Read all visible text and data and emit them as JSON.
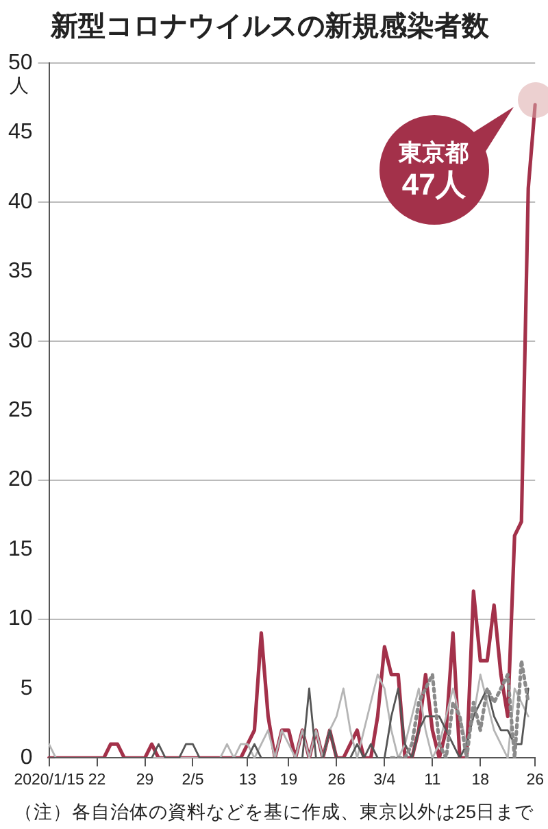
{
  "chart_data": {
    "type": "line",
    "title": "新型コロナウイルスの新規感染者数",
    "ylabel": "人",
    "categories": [
      "2020/1/15",
      null,
      null,
      null,
      null,
      null,
      null,
      "22",
      null,
      null,
      null,
      null,
      null,
      null,
      "29",
      null,
      null,
      null,
      null,
      null,
      null,
      "2/5",
      null,
      null,
      null,
      null,
      null,
      null,
      null,
      "13",
      null,
      null,
      null,
      null,
      null,
      "19",
      null,
      null,
      null,
      null,
      null,
      null,
      "26",
      null,
      null,
      null,
      null,
      null,
      null,
      "3/4",
      null,
      null,
      null,
      null,
      null,
      null,
      "11",
      null,
      null,
      null,
      null,
      null,
      null,
      "18",
      null,
      null,
      null,
      null,
      null,
      null,
      null,
      "26"
    ],
    "ylim": [
      0,
      50
    ],
    "yticks": [
      0,
      5,
      10,
      15,
      20,
      25,
      30,
      35,
      40,
      45,
      50
    ],
    "grid": "y",
    "legend": false,
    "marker": "none",
    "series": [
      {
        "name": "東京都",
        "color": "#a3314a",
        "values": [
          0,
          0,
          0,
          0,
          0,
          0,
          0,
          0,
          0,
          1,
          1,
          0,
          0,
          0,
          0,
          1,
          0,
          0,
          0,
          0,
          0,
          0,
          0,
          0,
          0,
          0,
          0,
          0,
          0,
          1,
          2,
          9,
          3,
          0,
          2,
          2,
          0,
          2,
          0,
          2,
          0,
          2,
          0,
          0,
          1,
          2,
          0,
          0,
          3,
          8,
          6,
          6,
          0,
          0,
          2,
          6,
          2,
          0,
          2,
          9,
          0,
          0,
          12,
          7,
          7,
          11,
          6,
          3,
          16,
          17,
          41,
          47
        ]
      },
      {
        "color": "#b5b5b5",
        "values": [
          1,
          0,
          0,
          0,
          0,
          0,
          0,
          0,
          0,
          0,
          0,
          0,
          0,
          0,
          0,
          0,
          0,
          0,
          0,
          0,
          0,
          0,
          0,
          0,
          0,
          0,
          1,
          0,
          1,
          1,
          0,
          1,
          2,
          0,
          2,
          1,
          0,
          2,
          0,
          2,
          0,
          2,
          3,
          5,
          2,
          0,
          2,
          4,
          6,
          5,
          2,
          0,
          1,
          3,
          5,
          2,
          0,
          1,
          3,
          5,
          3,
          1,
          3,
          6,
          4,
          2,
          1,
          0,
          5,
          4,
          3,
          null
        ]
      },
      {
        "color": "#555555",
        "values": [
          0,
          0,
          0,
          0,
          0,
          0,
          0,
          0,
          0,
          0,
          0,
          0,
          0,
          0,
          0,
          0,
          1,
          0,
          0,
          0,
          1,
          1,
          0,
          0,
          0,
          0,
          0,
          0,
          0,
          0,
          1,
          0,
          0,
          0,
          0,
          0,
          0,
          0,
          5,
          0,
          0,
          2,
          0,
          0,
          0,
          1,
          0,
          1,
          0,
          0,
          3,
          5,
          1,
          0,
          2,
          3,
          3,
          3,
          2,
          1,
          0,
          1,
          3,
          4,
          5,
          3,
          2,
          2,
          1,
          1,
          5,
          null
        ]
      },
      {
        "color": "#8a8a8a",
        "line_style": "dotted",
        "values": [
          null,
          null,
          null,
          null,
          null,
          null,
          null,
          null,
          null,
          null,
          null,
          null,
          null,
          null,
          null,
          null,
          null,
          null,
          null,
          null,
          null,
          null,
          null,
          null,
          null,
          null,
          null,
          null,
          null,
          null,
          null,
          null,
          null,
          null,
          null,
          null,
          null,
          null,
          null,
          null,
          null,
          null,
          null,
          null,
          null,
          null,
          null,
          null,
          null,
          null,
          0,
          0,
          0,
          1,
          4,
          5,
          6,
          1,
          0,
          4,
          3,
          0,
          4,
          2,
          5,
          4,
          5,
          6,
          0,
          7,
          4,
          null
        ]
      }
    ],
    "annotations": [
      "47人",
      "（注）各自治体の資料などを基に作成、東京以外は25日まで"
    ]
  }
}
